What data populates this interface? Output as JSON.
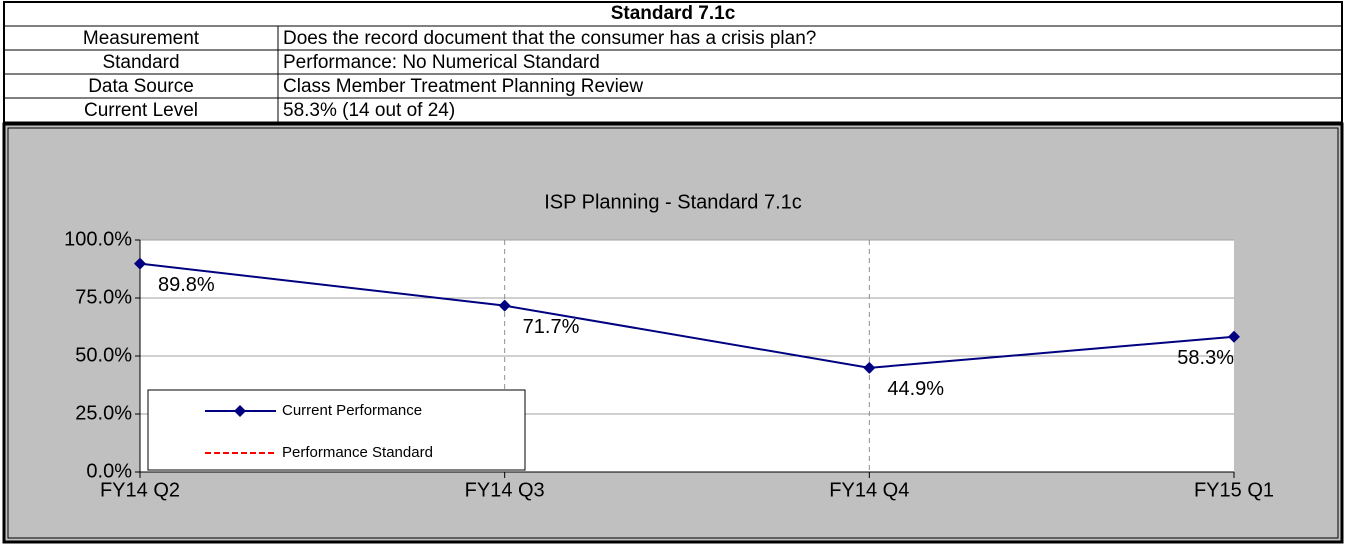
{
  "table": {
    "title": "Standard 7.1c",
    "rows": [
      [
        "Measurement",
        "Does the record document that the consumer has a crisis plan?"
      ],
      [
        "Standard",
        "Performance: No Numerical Standard"
      ],
      [
        "Data Source",
        "Class Member Treatment Planning Review"
      ],
      [
        "Current Level",
        "58.3% (14 out of 24)"
      ]
    ]
  },
  "chart_data": {
    "type": "line",
    "title": "ISP Planning - Standard 7.1c",
    "categories": [
      "FY14 Q2",
      "FY14 Q3",
      "FY14 Q4",
      "FY15 Q1"
    ],
    "series": [
      {
        "name": "Current Performance",
        "color": "#000080",
        "values": [
          89.8,
          71.7,
          44.9,
          58.3
        ],
        "value_labels": [
          "89.8%",
          "71.7%",
          "44.9%",
          "58.3%"
        ]
      },
      {
        "name": "Performance Standard",
        "color": "#ff0000",
        "values": [
          null,
          null,
          null,
          null
        ]
      }
    ],
    "ylim": [
      0,
      100
    ],
    "yticks": [
      {
        "value": 0,
        "label": "0.0%"
      },
      {
        "value": 25,
        "label": "25.0%"
      },
      {
        "value": 50,
        "label": "50.0%"
      },
      {
        "value": 75,
        "label": "75.0%"
      },
      {
        "value": 100,
        "label": "100.0%"
      }
    ],
    "grid": true,
    "legend": "lower left"
  }
}
